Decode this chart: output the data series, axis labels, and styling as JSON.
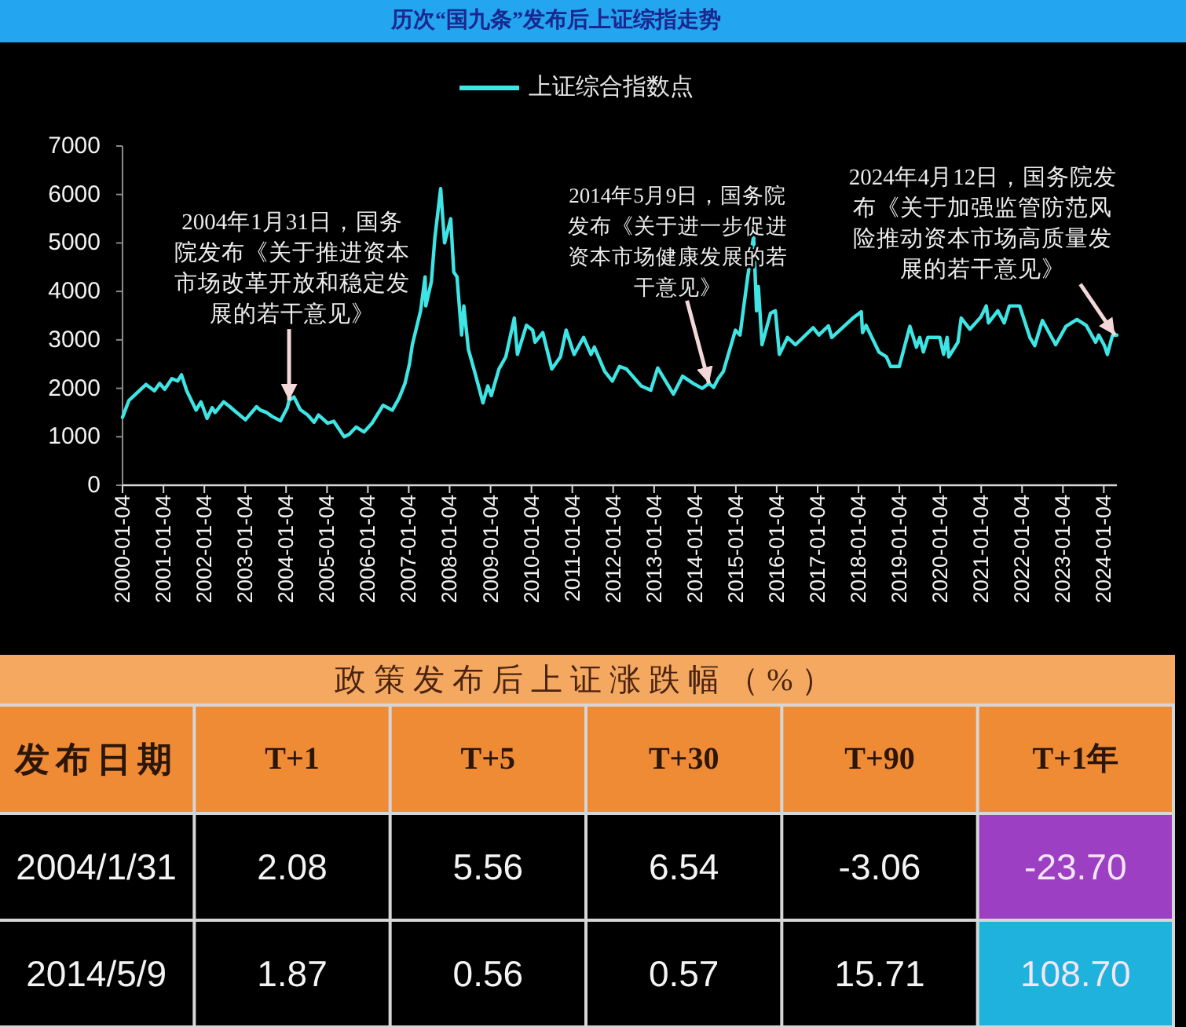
{
  "chart_data": [
    {
      "type": "line",
      "title": "历次“国九条”发布后上证综指走势",
      "legend": "top",
      "xlim": [
        "2000-01-04",
        "2024-04-30"
      ],
      "xticks": [
        "2000-01-04",
        "2001-01-04",
        "2002-01-04",
        "2003-01-04",
        "2004-01-04",
        "2005-01-04",
        "2006-01-04",
        "2007-01-04",
        "2008-01-04",
        "2009-01-04",
        "2010-01-04",
        "2011-01-04",
        "2012-01-04",
        "2013-01-04",
        "2014-01-04",
        "2015-01-04",
        "2016-01-04",
        "2017-01-04",
        "2018-01-04",
        "2019-01-04",
        "2020-01-04",
        "2021-01-04",
        "2022-01-04",
        "2023-01-04",
        "2024-01-04"
      ],
      "ylim": [
        0,
        7000
      ],
      "yticks": [
        0,
        1000,
        2000,
        3000,
        4000,
        5000,
        6000,
        7000
      ],
      "series": [
        {
          "name": "上证综合指数点",
          "color": "#3fe4e4",
          "x": [
            "2000-01-04",
            "2000-03-01",
            "2000-05-01",
            "2000-08-01",
            "2000-10-15",
            "2000-12-01",
            "2001-01-15",
            "2001-03-20",
            "2001-05-10",
            "2001-06-14",
            "2001-07-30",
            "2001-10-22",
            "2001-12-05",
            "2002-01-28",
            "2002-03-15",
            "2002-04-10",
            "2002-06-25",
            "2002-08-20",
            "2002-10-10",
            "2003-01-06",
            "2003-04-15",
            "2003-05-20",
            "2003-07-15",
            "2003-09-01",
            "2003-11-15",
            "2004-01-15",
            "2004-01-31",
            "2004-03-15",
            "2004-05-10",
            "2004-07-15",
            "2004-09-10",
            "2004-10-20",
            "2005-01-10",
            "2005-03-05",
            "2005-06-06",
            "2005-07-20",
            "2005-09-20",
            "2005-12-01",
            "2006-02-10",
            "2006-05-20",
            "2006-08-10",
            "2006-10-10",
            "2006-12-01",
            "2007-01-10",
            "2007-02-05",
            "2007-04-20",
            "2007-05-30",
            "2007-06-05",
            "2007-07-25",
            "2007-08-25",
            "2007-10-16",
            "2007-11-20",
            "2008-01-14",
            "2008-02-10",
            "2008-03-10",
            "2008-04-20",
            "2008-05-10",
            "2008-06-20",
            "2008-08-20",
            "2008-10-28",
            "2008-12-10",
            "2009-01-10",
            "2009-03-20",
            "2009-05-20",
            "2009-08-04",
            "2009-09-01",
            "2009-11-20",
            "2010-01-15",
            "2010-02-05",
            "2010-04-15",
            "2010-07-05",
            "2010-09-20",
            "2010-11-10",
            "2011-01-20",
            "2011-04-15",
            "2011-06-20",
            "2011-07-20",
            "2011-10-20",
            "2011-12-28",
            "2012-03-01",
            "2012-05-01",
            "2012-09-10",
            "2012-12-05",
            "2013-02-05",
            "2013-06-25",
            "2013-09-15",
            "2013-12-20",
            "2014-03-10",
            "2014-05-09",
            "2014-06-20",
            "2014-07-30",
            "2014-09-15",
            "2014-12-31",
            "2015-02-10",
            "2015-04-20",
            "2015-06-12",
            "2015-07-08",
            "2015-07-24",
            "2015-08-26",
            "2015-11-10",
            "2015-12-23",
            "2016-01-28",
            "2016-04-10",
            "2016-06-20",
            "2016-11-25",
            "2017-01-15",
            "2017-04-10",
            "2017-05-10",
            "2017-11-15",
            "2018-01-29",
            "2018-02-09",
            "2018-03-12",
            "2018-07-05",
            "2018-09-10",
            "2018-10-18",
            "2019-01-03",
            "2019-04-08",
            "2019-06-05",
            "2019-07-05",
            "2019-08-06",
            "2019-09-15",
            "2019-12-31",
            "2020-02-03",
            "2020-03-05",
            "2020-03-20",
            "2020-06-10",
            "2020-07-09",
            "2020-09-25",
            "2020-12-31",
            "2021-02-18",
            "2021-03-10",
            "2021-06-01",
            "2021-07-28",
            "2021-09-13",
            "2021-12-13",
            "2022-03-15",
            "2022-04-27",
            "2022-07-05",
            "2022-10-31",
            "2023-01-31",
            "2023-05-09",
            "2023-07-31",
            "2023-10-23",
            "2023-11-20",
            "2024-01-10",
            "2024-02-05",
            "2024-03-20",
            "2024-04-12",
            "2024-04-30"
          ],
          "values": [
            1400,
            1750,
            1880,
            2080,
            1950,
            2100,
            1980,
            2200,
            2150,
            2280,
            1950,
            1550,
            1720,
            1380,
            1600,
            1500,
            1720,
            1620,
            1520,
            1350,
            1620,
            1550,
            1500,
            1420,
            1330,
            1600,
            1750,
            1820,
            1560,
            1450,
            1300,
            1450,
            1280,
            1320,
            1000,
            1050,
            1200,
            1100,
            1280,
            1650,
            1550,
            1800,
            2100,
            2500,
            2900,
            3600,
            4300,
            3700,
            4200,
            5100,
            6120,
            5000,
            5500,
            4400,
            4300,
            3100,
            3700,
            2800,
            2300,
            1700,
            2050,
            1850,
            2400,
            2650,
            3450,
            2700,
            3300,
            3200,
            2950,
            3150,
            2400,
            2650,
            3200,
            2700,
            3050,
            2700,
            2850,
            2350,
            2150,
            2450,
            2400,
            2050,
            1960,
            2420,
            1880,
            2250,
            2100,
            2000,
            2100,
            2020,
            2200,
            2350,
            3200,
            3100,
            4300,
            5150,
            3600,
            4100,
            2900,
            3550,
            3600,
            2700,
            3050,
            2900,
            3250,
            3100,
            3290,
            3050,
            3450,
            3580,
            3150,
            3300,
            2750,
            2650,
            2450,
            2450,
            3280,
            2850,
            3050,
            2750,
            3050,
            3050,
            2700,
            3050,
            2650,
            2950,
            3450,
            3220,
            3470,
            3700,
            3350,
            3600,
            3350,
            3700,
            3700,
            3050,
            2880,
            3400,
            2900,
            3280,
            3420,
            3300,
            2950,
            3100,
            2880,
            2700,
            3080,
            3100,
            3100
          ]
        }
      ],
      "annotations": [
        {
          "text": "2004年1月31日，国务院发布《关于推进资本市场改革开放和稳定发展的若干意见》",
          "x": "2004-01-31",
          "y": 1750
        },
        {
          "text": "2014年5月9日，国务院发布《关于进一步促进资本市场健康发展的若干意见》",
          "x": "2014-05-09",
          "y": 2100
        },
        {
          "text": "2024年4月12日，国务院发布《关于加强监管防范风险推动资本市场高质量发展的若干意见》",
          "x": "2024-04-12",
          "y": 3100
        }
      ]
    },
    {
      "type": "other",
      "title": "政策发布后上证涨跌幅（%）",
      "ylabel": "发布日期",
      "categories": [
        "T+1",
        "T+5",
        "T+30",
        "T+90",
        "T+1年"
      ],
      "y_categories": [
        "2004/1/31",
        "2014/5/9"
      ],
      "cell_labels": [
        [
          "2.08",
          "5.56",
          "6.54",
          "-3.06",
          "-23.70"
        ],
        [
          "1.87",
          "0.56",
          "0.57",
          "15.71",
          "108.70"
        ]
      ],
      "colors": [
        [
          null,
          null,
          null,
          null,
          "#9c3fc2"
        ],
        [
          null,
          null,
          null,
          null,
          "#1fb2dc"
        ]
      ]
    }
  ]
}
